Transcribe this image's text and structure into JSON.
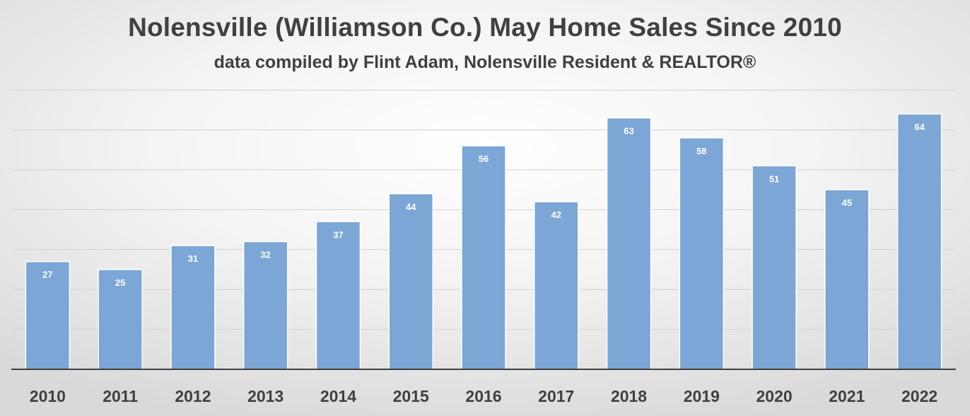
{
  "chart_data": {
    "type": "bar",
    "title": "Nolensville (Williamson Co.) May Home Sales Since 2010",
    "subtitle": "data compiled by Flint Adam, Nolensville Resident & REALTOR®",
    "xlabel": "",
    "ylabel": "",
    "categories": [
      "2010",
      "2011",
      "2012",
      "2013",
      "2014",
      "2015",
      "2016",
      "2017",
      "2018",
      "2019",
      "2020",
      "2021",
      "2022"
    ],
    "values": [
      27,
      25,
      31,
      32,
      37,
      44,
      56,
      42,
      63,
      58,
      51,
      45,
      64
    ],
    "ylim": [
      0,
      70
    ],
    "grid": true,
    "legend": "none",
    "bar_color": "#7ba6d6",
    "bar_edge_color": "#ffffff",
    "label_color": "#ffffff",
    "tick_color": "#404040"
  }
}
